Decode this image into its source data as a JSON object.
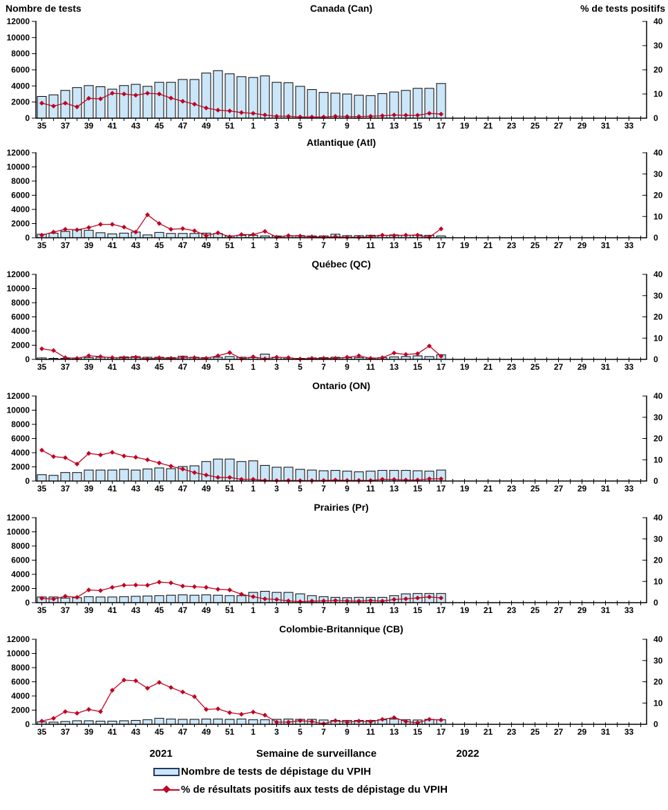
{
  "page": {
    "left_axis_title": "Nombre de tests",
    "right_axis_title": "% de tests positifs",
    "x_axis": {
      "year_left": "2021",
      "title": "Semaine de surveillance",
      "year_right": "2022"
    },
    "legend": [
      {
        "marker": "bar-swatch",
        "label": "Nombre de tests de dépistage du VPIH"
      },
      {
        "marker": "line-diamond-swatch",
        "label": "% de résultats positifs aux tests de dépistage du VPIH"
      }
    ]
  },
  "style": {
    "bar_fill": "#CBE6F9",
    "bar_stroke": "#000000",
    "line_color": "#C00020",
    "axis_color": "#000000",
    "legend_swatch_border": "#203864"
  },
  "chart_data": {
    "type": "bar",
    "subtype": "small-multiples combo bar+line, bars = number of tests (left axis), line = % positive (right axis)",
    "weeks": [
      35,
      36,
      37,
      38,
      39,
      40,
      41,
      42,
      43,
      44,
      45,
      46,
      47,
      48,
      49,
      50,
      51,
      52,
      1,
      2,
      3,
      4,
      5,
      6,
      7,
      8,
      9,
      10,
      11,
      12,
      13,
      14,
      15,
      16,
      17,
      18,
      19,
      20,
      21,
      22,
      23,
      24,
      25,
      26,
      27,
      28,
      29,
      30,
      31,
      32,
      33,
      34
    ],
    "left_axis": {
      "label": "Nombre de tests",
      "min": 0,
      "max": 12000,
      "step": 2000
    },
    "right_axis": {
      "label": "% de tests positifs",
      "min": 0,
      "max": 40,
      "step": 10
    },
    "panels": [
      {
        "title": "Canada (Can)",
        "tests": [
          2700,
          2900,
          3450,
          3800,
          4050,
          3900,
          3600,
          4050,
          4200,
          3950,
          4450,
          4450,
          4800,
          4800,
          5600,
          5900,
          5500,
          5150,
          5050,
          5250,
          4450,
          4400,
          3950,
          3550,
          3200,
          3100,
          3000,
          2850,
          2800,
          3050,
          3250,
          3450,
          3700,
          3700,
          4300
        ],
        "pct_positive": [
          6.2,
          5,
          6.2,
          4.7,
          8.2,
          8,
          10.3,
          10,
          9.5,
          10.3,
          10,
          8.3,
          7,
          5.8,
          4.2,
          3.3,
          3,
          2.3,
          2,
          1.3,
          0.8,
          0.8,
          0.5,
          0.5,
          0.5,
          0.8,
          0.7,
          0.7,
          0.8,
          1,
          1.3,
          1.2,
          1.2,
          2,
          1.7
        ]
      },
      {
        "title": "Atlantique (Atl)",
        "tests": [
          500,
          650,
          900,
          1100,
          1050,
          700,
          550,
          650,
          800,
          400,
          750,
          600,
          600,
          600,
          650,
          600,
          250,
          350,
          350,
          250,
          250,
          250,
          300,
          250,
          250,
          500,
          300,
          300,
          350,
          350,
          400,
          350,
          400,
          350,
          250
        ],
        "pct_positive": [
          1.2,
          2.7,
          4,
          3.7,
          4.8,
          6.3,
          6.3,
          5,
          2.7,
          10.8,
          6.7,
          4,
          4.3,
          3.3,
          1,
          2.3,
          0.5,
          1.5,
          1.5,
          3,
          0.3,
          1,
          0.8,
          0.5,
          0.2,
          0.5,
          0.2,
          0.2,
          0.5,
          1.2,
          1,
          1.2,
          1.2,
          0.3,
          4.2
        ]
      },
      {
        "title": "Québec (QC)",
        "tests": [
          200,
          150,
          150,
          200,
          250,
          300,
          250,
          350,
          400,
          300,
          300,
          250,
          450,
          300,
          250,
          300,
          400,
          300,
          250,
          750,
          300,
          200,
          150,
          200,
          250,
          300,
          250,
          250,
          200,
          250,
          350,
          400,
          500,
          400,
          650
        ],
        "pct_positive": [
          5,
          4.2,
          0.8,
          0.5,
          1.7,
          1.3,
          0.8,
          0.7,
          1,
          0.2,
          0.7,
          0.5,
          0.8,
          0.8,
          0.5,
          1.7,
          3.2,
          0.3,
          1.2,
          0.3,
          1,
          0.8,
          0.2,
          0.5,
          0.5,
          0.5,
          1,
          1.7,
          0.5,
          0.8,
          3,
          2.3,
          2.7,
          6.3,
          1.5
        ]
      },
      {
        "title": "Ontario (ON)",
        "tests": [
          900,
          800,
          1200,
          1200,
          1550,
          1550,
          1550,
          1650,
          1550,
          1700,
          1850,
          1750,
          2050,
          2150,
          2750,
          3100,
          3100,
          2750,
          2850,
          2200,
          1950,
          1950,
          1650,
          1550,
          1450,
          1500,
          1400,
          1300,
          1400,
          1500,
          1500,
          1500,
          1450,
          1400,
          1550
        ],
        "pct_positive": [
          14.5,
          11.5,
          11,
          8,
          13,
          12.3,
          13.5,
          11.8,
          11.2,
          10,
          8.5,
          7,
          5.6,
          4,
          2.8,
          1.7,
          1.7,
          0.8,
          0.8,
          0.3,
          0.2,
          0.3,
          0.2,
          0.2,
          0.3,
          0.5,
          0.3,
          0.3,
          0.3,
          0.8,
          0.7,
          0.5,
          0.5,
          1,
          1
        ]
      },
      {
        "title": "Prairies (Pr)",
        "tests": [
          800,
          800,
          650,
          700,
          850,
          800,
          800,
          850,
          900,
          950,
          1000,
          1050,
          1100,
          1050,
          1100,
          1050,
          1000,
          1000,
          1450,
          1600,
          1450,
          1450,
          1250,
          1000,
          850,
          750,
          700,
          750,
          750,
          750,
          1000,
          1250,
          1300,
          1300,
          1300
        ],
        "pct_positive": [
          2,
          1.7,
          3,
          2.5,
          6,
          5.7,
          7.2,
          8.2,
          8.3,
          8.2,
          9.7,
          9.3,
          7.8,
          7.5,
          7.2,
          6.3,
          6,
          4,
          2.8,
          1.8,
          1.5,
          0.8,
          0.5,
          0.7,
          0.8,
          1,
          0.8,
          0.7,
          1,
          0.7,
          1.5,
          1.8,
          2.2,
          2.7,
          2.2
        ]
      },
      {
        "title": "Colombie-Britannique (CB)",
        "tests": [
          350,
          300,
          400,
          500,
          500,
          450,
          450,
          500,
          550,
          650,
          850,
          750,
          700,
          700,
          750,
          750,
          700,
          750,
          650,
          650,
          700,
          750,
          700,
          700,
          600,
          550,
          550,
          550,
          550,
          650,
          750,
          650,
          600,
          700,
          650
        ],
        "pct_positive": [
          1.5,
          2.8,
          6,
          5.2,
          7,
          6,
          16,
          20.8,
          20.5,
          17,
          19.7,
          17.3,
          15.2,
          13,
          7,
          7.3,
          5.5,
          4.7,
          5.8,
          4.3,
          1,
          1,
          1.7,
          1.3,
          0.3,
          1.7,
          1,
          1.5,
          1.2,
          2.3,
          3.2,
          1.3,
          0.7,
          2.3,
          2
        ]
      }
    ]
  }
}
